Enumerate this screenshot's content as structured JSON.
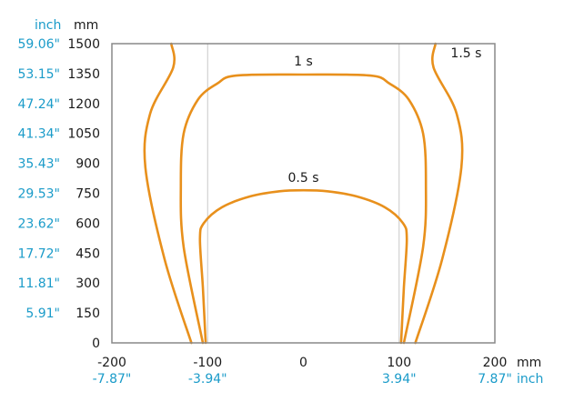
{
  "chart_data": {
    "type": "line",
    "title": "",
    "units": {
      "y_primary": "mm",
      "y_secondary": "inch",
      "x_primary": "mm",
      "x_secondary": "inch"
    },
    "xlim": [
      -200,
      200
    ],
    "ylim": [
      0,
      1500
    ],
    "grid": {
      "x": [
        -100,
        100
      ]
    },
    "x_ticks": [
      {
        "mm": "-200",
        "inch": "-7.87\""
      },
      {
        "mm": "-100",
        "inch": "-3.94\""
      },
      {
        "mm": "0",
        "inch": ""
      },
      {
        "mm": "100",
        "inch": "3.94\""
      },
      {
        "mm": "200",
        "inch": "7.87\""
      }
    ],
    "y_ticks": [
      {
        "mm": "0",
        "inch": ""
      },
      {
        "mm": "150",
        "inch": "5.91\""
      },
      {
        "mm": "300",
        "inch": "11.81\""
      },
      {
        "mm": "450",
        "inch": "17.72\""
      },
      {
        "mm": "600",
        "inch": "23.62\""
      },
      {
        "mm": "750",
        "inch": "29.53\""
      },
      {
        "mm": "900",
        "inch": "35.43\""
      },
      {
        "mm": "1050",
        "inch": "41.34\""
      },
      {
        "mm": "1200",
        "inch": "47.24\""
      },
      {
        "mm": "1350",
        "inch": "53.15\""
      },
      {
        "mm": "1500",
        "inch": "59.06\""
      }
    ],
    "series": [
      {
        "name": "0.5 s",
        "label_at": [
          0,
          770
        ],
        "points": [
          [
            -102,
            0
          ],
          [
            -105,
            280
          ],
          [
            -108,
            520
          ],
          [
            -104,
            600
          ],
          [
            -85,
            680
          ],
          [
            -55,
            735
          ],
          [
            -25,
            760
          ],
          [
            0,
            765
          ],
          [
            25,
            760
          ],
          [
            55,
            735
          ],
          [
            85,
            680
          ],
          [
            104,
            600
          ],
          [
            108,
            520
          ],
          [
            105,
            280
          ],
          [
            102,
            0
          ]
        ]
      },
      {
        "name": "1 s",
        "label_at": [
          0,
          1355
        ],
        "points": [
          [
            -105,
            0
          ],
          [
            -125,
            480
          ],
          [
            -128,
            790
          ],
          [
            -125,
            1050
          ],
          [
            -110,
            1220
          ],
          [
            -90,
            1300
          ],
          [
            -70,
            1340
          ],
          [
            0,
            1345
          ],
          [
            70,
            1340
          ],
          [
            90,
            1300
          ],
          [
            110,
            1220
          ],
          [
            125,
            1050
          ],
          [
            128,
            790
          ],
          [
            125,
            480
          ],
          [
            105,
            0
          ]
        ]
      },
      {
        "name": "1.5 s",
        "label_at": [
          170,
          1395
        ],
        "points": [
          [
            -117,
            0
          ],
          [
            -145,
            420
          ],
          [
            -165,
            880
          ],
          [
            -160,
            1150
          ],
          [
            -136,
            1380
          ],
          [
            -138,
            1500
          ],
          null,
          [
            138,
            1500
          ],
          [
            136,
            1380
          ],
          [
            160,
            1150
          ],
          [
            165,
            880
          ],
          [
            145,
            420
          ],
          [
            117,
            0
          ]
        ]
      }
    ],
    "colors": {
      "curve": "#e8901c",
      "axis": "#888888",
      "grid": "#c8c8c8"
    }
  }
}
